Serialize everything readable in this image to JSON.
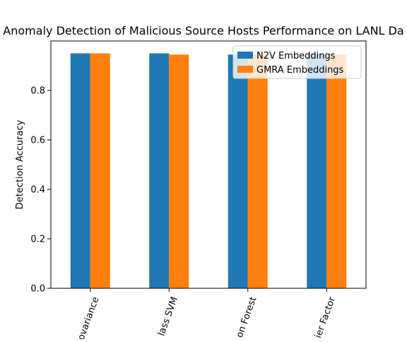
{
  "chart_data": {
    "type": "bar",
    "title": "Anomaly Detection of Malicious Source Hosts Performance on LANL Da",
    "xlabel": "",
    "ylabel": "Detection Accuracy",
    "categories": [
      "ovariance",
      "lass SVM",
      "on Forest",
      "ier Factor"
    ],
    "series": [
      {
        "name": "N2V Embeddings",
        "color": "#1f77b4",
        "values": [
          0.95,
          0.95,
          0.945,
          0.95
        ]
      },
      {
        "name": "GMRA Embeddings",
        "color": "#ff7f0e",
        "values": [
          0.95,
          0.945,
          0.945,
          0.945
        ]
      }
    ],
    "ylim": [
      0,
      1.0
    ],
    "yticks": [
      "0.0",
      "0.2",
      "0.4",
      "0.6",
      "0.8"
    ],
    "ytick_values": [
      0.0,
      0.2,
      0.4,
      0.6,
      0.8
    ],
    "grid": false,
    "legend_position": "top-right",
    "xtick_rotation": "rotated"
  }
}
